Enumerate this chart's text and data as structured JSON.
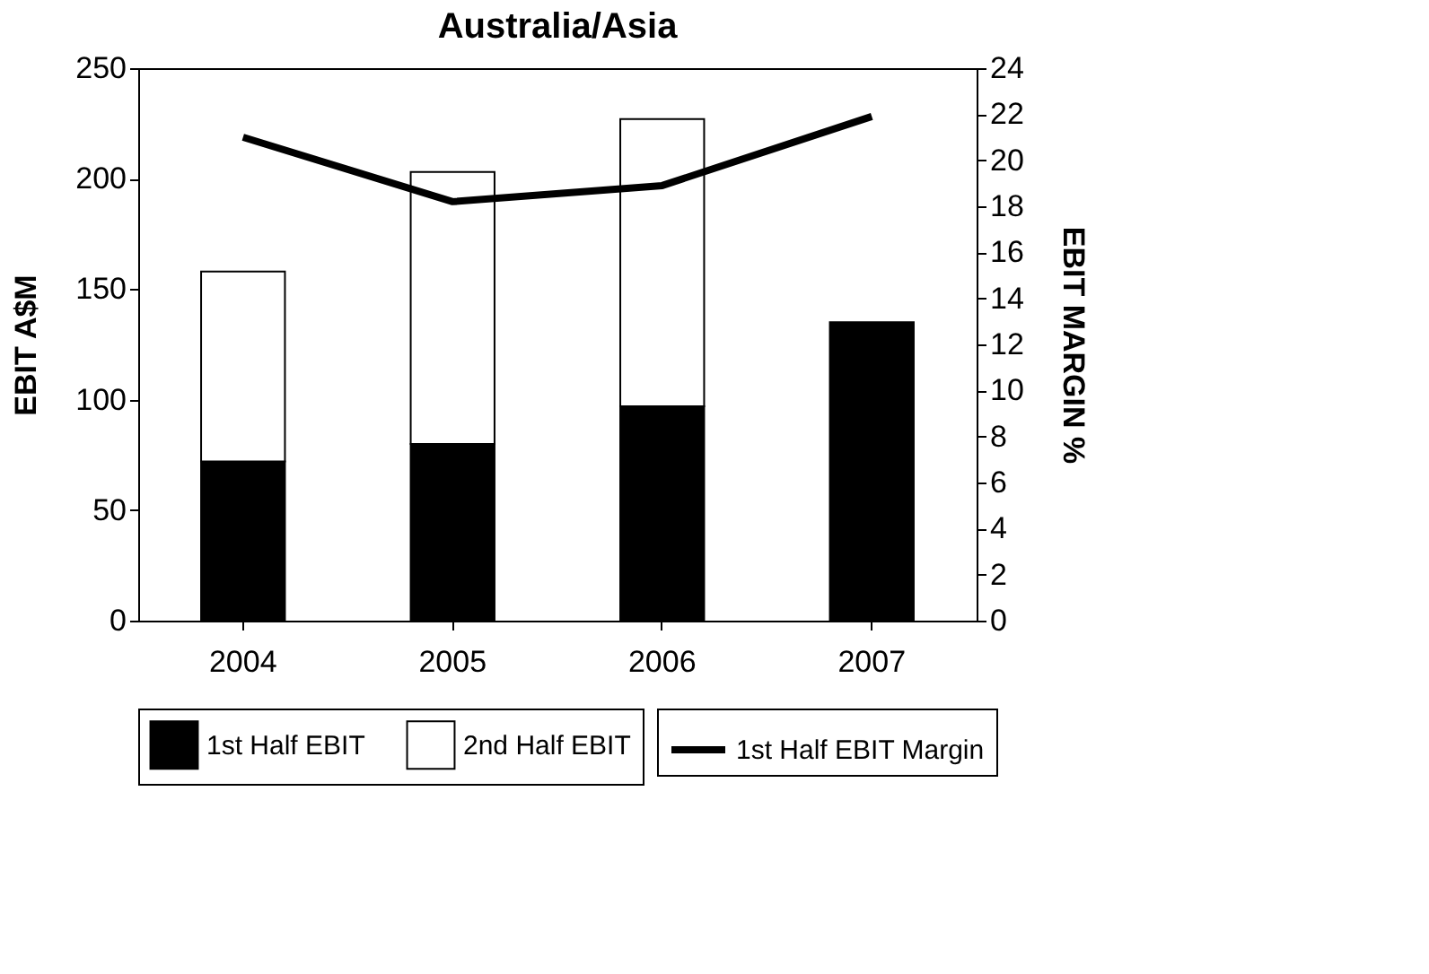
{
  "chart_data": {
    "type": "bar",
    "title": "Australia/Asia",
    "ylabel": "EBIT A$M",
    "y2label": "EBIT MARGIN  %",
    "categories": [
      "2004",
      "2005",
      "2006",
      "2007"
    ],
    "stacked": true,
    "series": [
      {
        "name": "1st Half EBIT",
        "color": "#000000",
        "values": [
          72,
          80,
          97,
          135
        ]
      },
      {
        "name": "2nd Half EBIT",
        "color": "#ffffff",
        "values": [
          86,
          123,
          130,
          null
        ]
      },
      {
        "name": "1st Half EBIT Margin",
        "type": "line",
        "axis": "y2",
        "color": "#000000",
        "values": [
          21,
          18.2,
          18.9,
          21.9
        ]
      }
    ],
    "ylim": [
      0,
      250
    ],
    "yticks": [
      0,
      50,
      100,
      150,
      200,
      250
    ],
    "y2lim": [
      0,
      24
    ],
    "y2ticks": [
      0,
      2,
      4,
      6,
      8,
      10,
      12,
      14,
      16,
      18,
      20,
      22,
      24
    ],
    "grid": false,
    "legend": "bottom"
  }
}
